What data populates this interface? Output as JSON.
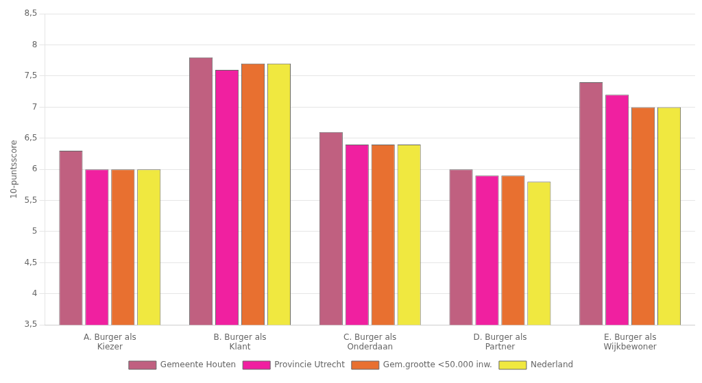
{
  "chart_data": {
    "type": "bar",
    "categories": [
      "A. Burger als\nKiezer",
      "B. Burger als\nKlant",
      "C. Burger als\nOnderdaan",
      "D. Burger als\nPartner",
      "E. Burger als\nWijkbewoner"
    ],
    "series": [
      {
        "name": "Gemeente Houten",
        "color": "#C06080",
        "values": [
          6.3,
          7.8,
          6.6,
          6.0,
          7.4
        ]
      },
      {
        "name": "Provincie Utrecht",
        "color": "#F020A0",
        "values": [
          6.0,
          7.6,
          6.4,
          5.9,
          7.2
        ]
      },
      {
        "name": "Gem.grootte <50.000 inw.",
        "color": "#E87030",
        "values": [
          6.0,
          7.7,
          6.4,
          5.9,
          7.0
        ]
      },
      {
        "name": "Nederland",
        "color": "#F0E840",
        "values": [
          6.0,
          7.7,
          6.4,
          5.8,
          7.0
        ]
      }
    ],
    "ylabel": "10-puntsscore",
    "ylim": [
      3.5,
      8.5
    ],
    "yticks": [
      {
        "value": 3.5,
        "label": "3,5"
      },
      4,
      {
        "value": 4.5,
        "label": "4,5"
      },
      5,
      {
        "value": 5.5,
        "label": "5,5"
      },
      6,
      {
        "value": 6.5,
        "label": "6,5"
      },
      7,
      {
        "value": 7.5,
        "label": "7,5"
      },
      8,
      {
        "value": 8.5,
        "label": "8,5"
      }
    ],
    "grid": true,
    "legend": "bottom"
  }
}
